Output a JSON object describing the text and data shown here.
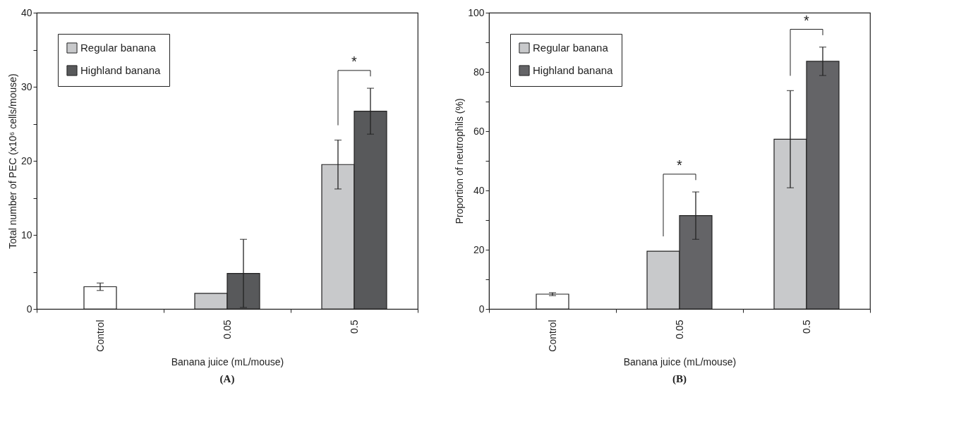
{
  "chart_data": [
    {
      "type": "bar",
      "title": "(A)",
      "xlabel": "Banana juice (mL/mouse)",
      "ylabel": "Total number of PEC (x10⁶ cells/mouse)",
      "categories": [
        "Control",
        "0.05",
        "0.5"
      ],
      "series": [
        {
          "color": "#ffffff",
          "values": [
            3.0,
            null,
            null
          ],
          "errors": [
            0.5,
            null,
            null
          ]
        },
        {
          "name": "Regular banana",
          "color": "#c8c9cb",
          "values": [
            null,
            2.1,
            19.5
          ],
          "errors": [
            null,
            null,
            3.3
          ]
        },
        {
          "name": "Highland banana",
          "color": "#58595b",
          "values": [
            null,
            4.8,
            26.7
          ],
          "errors": [
            null,
            4.6,
            3.1
          ]
        }
      ],
      "ylim": [
        0,
        40
      ],
      "yticks": [
        0,
        {
          "value": 5,
          "label": null
        },
        10,
        {
          "value": 15,
          "label": null
        },
        20,
        {
          "value": 25,
          "label": null
        },
        30,
        {
          "value": 35,
          "label": null
        },
        40
      ],
      "annotations": [
        "*"
      ],
      "legend": "top left",
      "grid": false
    },
    {
      "type": "bar",
      "title": "(B)",
      "xlabel": "Banana juice (mL/mouse)",
      "ylabel": "Proportion of neutrophils (%)",
      "categories": [
        "Control",
        "0.05",
        "0.5"
      ],
      "series": [
        {
          "color": "#ffffff",
          "values": [
            5.0,
            null,
            null
          ],
          "errors": [
            0.5,
            null,
            null
          ]
        },
        {
          "name": "Regular banana",
          "color": "#c8c9cb",
          "values": [
            null,
            19.5,
            57.3
          ],
          "errors": [
            null,
            null,
            16.4
          ]
        },
        {
          "name": "Highland banana",
          "color": "#646467",
          "values": [
            null,
            31.5,
            83.6
          ],
          "errors": [
            null,
            8.0,
            4.8
          ]
        }
      ],
      "ylim": [
        0,
        100
      ],
      "yticks": [
        0,
        {
          "value": 10,
          "label": null
        },
        20,
        {
          "value": 30,
          "label": null
        },
        40,
        {
          "value": 50,
          "label": null
        },
        60,
        {
          "value": 70,
          "label": null
        },
        80,
        {
          "value": 90,
          "label": null
        },
        100
      ],
      "annotations": [
        "*",
        "*"
      ],
      "legend": "top left",
      "grid": false
    }
  ]
}
